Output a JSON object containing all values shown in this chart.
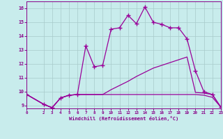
{
  "xlabel": "Windchill (Refroidissement éolien,°C)",
  "background_color": "#c8ecec",
  "grid_color": "#b0d0d0",
  "line_color": "#990099",
  "xlim": [
    0,
    23
  ],
  "ylim": [
    8.8,
    16.5
  ],
  "yticks": [
    9,
    10,
    11,
    12,
    13,
    14,
    15,
    16
  ],
  "xticks": [
    0,
    2,
    3,
    4,
    5,
    6,
    7,
    8,
    9,
    10,
    11,
    12,
    13,
    14,
    15,
    16,
    17,
    18,
    19,
    20,
    21,
    22,
    23
  ],
  "top_x": [
    0,
    2,
    3,
    4,
    5,
    6,
    7,
    8,
    9,
    10,
    11,
    12,
    13,
    14,
    15,
    16,
    17,
    18,
    19,
    20,
    21,
    22,
    23
  ],
  "top_y": [
    9.8,
    9.1,
    8.85,
    9.55,
    9.75,
    9.8,
    13.3,
    11.8,
    11.9,
    14.5,
    14.6,
    15.5,
    14.9,
    16.1,
    15.0,
    14.85,
    14.6,
    14.6,
    13.8,
    11.5,
    10.0,
    9.8,
    8.9
  ],
  "mid_x": [
    0,
    2,
    3,
    4,
    5,
    6,
    7,
    8,
    9,
    10,
    11,
    12,
    13,
    14,
    15,
    16,
    17,
    18,
    19,
    20,
    21,
    22,
    23
  ],
  "mid_y": [
    9.8,
    9.1,
    8.85,
    9.55,
    9.75,
    9.8,
    9.8,
    9.8,
    9.8,
    10.15,
    10.45,
    10.75,
    11.1,
    11.4,
    11.7,
    11.9,
    12.1,
    12.3,
    12.5,
    9.95,
    9.9,
    9.8,
    8.9
  ],
  "bot_x": [
    0,
    2,
    3,
    4,
    5,
    6,
    7,
    8,
    9,
    10,
    11,
    12,
    13,
    14,
    15,
    16,
    17,
    18,
    19,
    20,
    21,
    22,
    23
  ],
  "bot_y": [
    9.8,
    9.1,
    8.85,
    9.55,
    9.75,
    9.8,
    9.8,
    9.8,
    9.8,
    9.8,
    9.8,
    9.8,
    9.8,
    9.8,
    9.8,
    9.8,
    9.8,
    9.8,
    9.8,
    9.8,
    9.75,
    9.6,
    8.9
  ]
}
